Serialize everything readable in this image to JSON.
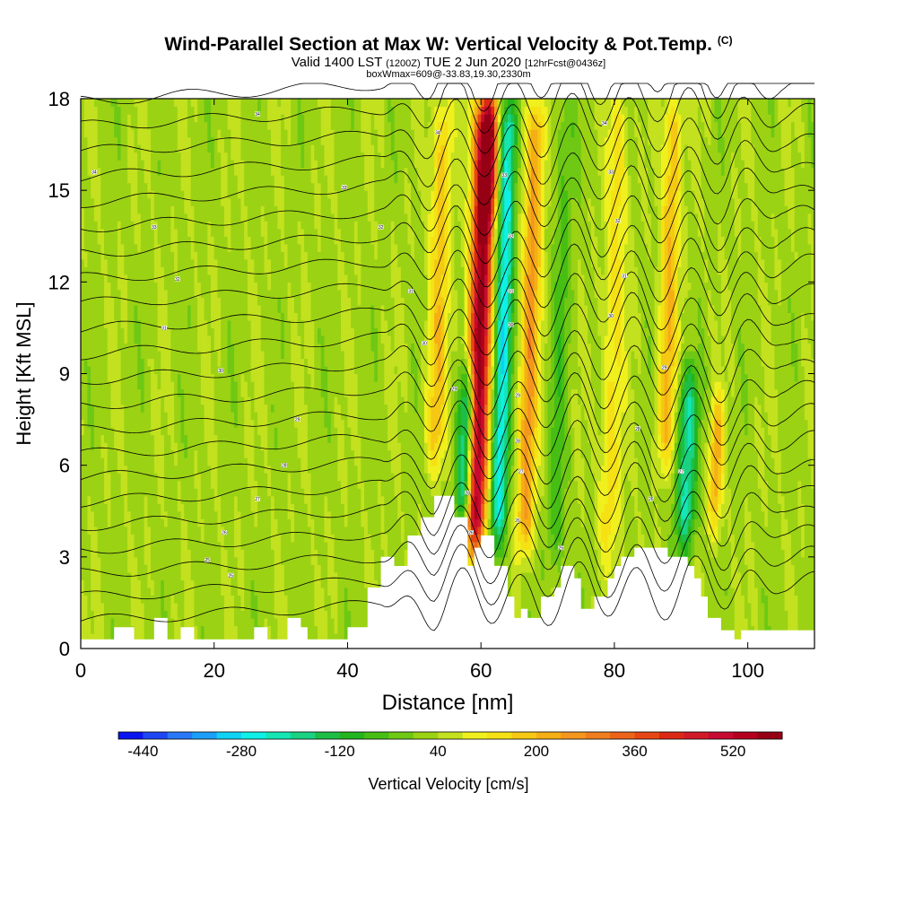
{
  "header": {
    "title": "Wind-Parallel Section at Max W: Vertical Velocity & Pot.Temp.",
    "title_mark": "(C)",
    "valid_prefix": "Valid 1400 LST",
    "valid_zulu": "(1200Z)",
    "valid_date": "TUE 2 Jun 2020",
    "forecast": "[12hrFcst@0436z]",
    "boxw": "boxWmax=609@-33.83,19.30,2330m"
  },
  "colors": {
    "terrain": "#ffffff",
    "contour": "#000000",
    "plot_border": "#000000"
  },
  "chart_data": {
    "type": "heatmap",
    "xlabel": "Distance [nm]",
    "ylabel": "Height [Kft MSL]",
    "xlim": [
      0,
      110
    ],
    "ylim": [
      0,
      18
    ],
    "xticks": [
      0,
      20,
      40,
      60,
      80,
      100
    ],
    "yticks": [
      0,
      3,
      6,
      9,
      12,
      15,
      18
    ],
    "grid": false,
    "colorbar": {
      "label": "Vertical Velocity [cm/s]",
      "min": -480,
      "max": 600,
      "step": 40,
      "tick_values": [
        -440,
        -280,
        -120,
        40,
        200,
        360,
        520
      ],
      "colors": [
        "#0a14f0",
        "#1e46f5",
        "#2878f8",
        "#1aa0fa",
        "#0fd2f5",
        "#0ff0e6",
        "#14e6b4",
        "#19d282",
        "#1ebe46",
        "#23b41e",
        "#46be14",
        "#6ec814",
        "#9bd214",
        "#c3e11e",
        "#f0f01e",
        "#f5e114",
        "#f5c814",
        "#f5af14",
        "#f5961e",
        "#f07d1e",
        "#eb6419",
        "#e64614",
        "#dc2814",
        "#d21928",
        "#c80a32",
        "#b4001e",
        "#960014"
      ]
    },
    "terrain_kft": [
      [
        0,
        0.3
      ],
      [
        5,
        0.3
      ],
      [
        5,
        0.7
      ],
      [
        8,
        0.7
      ],
      [
        8,
        0.3
      ],
      [
        11,
        0.3
      ],
      [
        11,
        1.0
      ],
      [
        13,
        1.0
      ],
      [
        13,
        0.3
      ],
      [
        15,
        0.3
      ],
      [
        15,
        0.7
      ],
      [
        17,
        0.7
      ],
      [
        17,
        0.3
      ],
      [
        26,
        0.3
      ],
      [
        26,
        0.7
      ],
      [
        28,
        0.7
      ],
      [
        28,
        0.3
      ],
      [
        31,
        0.3
      ],
      [
        31,
        1.0
      ],
      [
        33,
        1.0
      ],
      [
        33,
        0.7
      ],
      [
        34,
        0.7
      ],
      [
        34,
        0.3
      ],
      [
        40,
        0.3
      ],
      [
        40,
        0.7
      ],
      [
        43,
        0.7
      ],
      [
        43,
        2.0
      ],
      [
        45,
        2.0
      ],
      [
        45,
        3.0
      ],
      [
        47,
        3.0
      ],
      [
        47,
        2.7
      ],
      [
        49,
        2.7
      ],
      [
        49,
        3.7
      ],
      [
        51,
        3.7
      ],
      [
        51,
        4.3
      ],
      [
        53,
        4.3
      ],
      [
        53,
        5.0
      ],
      [
        56,
        5.0
      ],
      [
        56,
        4.3
      ],
      [
        58,
        4.3
      ],
      [
        58,
        2.7
      ],
      [
        59,
        2.7
      ],
      [
        59,
        3.3
      ],
      [
        60,
        3.3
      ],
      [
        60,
        3.7
      ],
      [
        62,
        3.7
      ],
      [
        62,
        2.7
      ],
      [
        64,
        2.7
      ],
      [
        64,
        1.7
      ],
      [
        65,
        1.7
      ],
      [
        65,
        1.0
      ],
      [
        66,
        1.0
      ],
      [
        66,
        1.3
      ],
      [
        67,
        1.3
      ],
      [
        67,
        1.0
      ],
      [
        69,
        1.0
      ],
      [
        69,
        1.7
      ],
      [
        71,
        1.7
      ],
      [
        71,
        2.0
      ],
      [
        72,
        2.0
      ],
      [
        72,
        2.7
      ],
      [
        74,
        2.7
      ],
      [
        74,
        2.3
      ],
      [
        75,
        2.3
      ],
      [
        75,
        1.3
      ],
      [
        77,
        1.3
      ],
      [
        77,
        1.7
      ],
      [
        79,
        1.7
      ],
      [
        79,
        2.3
      ],
      [
        80,
        2.3
      ],
      [
        80,
        2.7
      ],
      [
        81,
        2.7
      ],
      [
        81,
        3.0
      ],
      [
        83,
        3.0
      ],
      [
        83,
        3.3
      ],
      [
        88,
        3.3
      ],
      [
        88,
        3.0
      ],
      [
        91,
        3.0
      ],
      [
        91,
        2.7
      ],
      [
        92,
        2.7
      ],
      [
        92,
        2.3
      ],
      [
        93,
        2.3
      ],
      [
        93,
        1.7
      ],
      [
        94,
        1.7
      ],
      [
        94,
        1.0
      ],
      [
        96,
        1.0
      ],
      [
        96,
        0.6
      ],
      [
        98,
        0.6
      ],
      [
        98,
        0.3
      ],
      [
        99,
        0.3
      ],
      [
        99,
        0.6
      ],
      [
        110,
        0.6
      ]
    ],
    "updraft_cores": [
      {
        "x": 59.0,
        "ymin": 3.3,
        "ymax": 18,
        "w_cms": 560,
        "halfwidth_nm": 1.6
      },
      {
        "x": 66.5,
        "ymin": 3.3,
        "ymax": 18,
        "w_cms": 220,
        "halfwidth_nm": 1.4
      },
      {
        "x": 61.0,
        "ymin": 14,
        "ymax": 18,
        "w_cms": 240,
        "halfwidth_nm": 1.2
      },
      {
        "x": 53.0,
        "ymin": 6,
        "ymax": 18,
        "w_cms": 150,
        "halfwidth_nm": 1.5
      },
      {
        "x": 87.5,
        "ymin": 6,
        "ymax": 18,
        "w_cms": 170,
        "halfwidth_nm": 1.4
      },
      {
        "x": 95.0,
        "ymin": 4,
        "ymax": 8,
        "w_cms": 190,
        "halfwidth_nm": 1.0
      },
      {
        "x": 79.0,
        "ymin": 3,
        "ymax": 18,
        "w_cms": 110,
        "halfwidth_nm": 1.6
      }
    ],
    "downdraft_cores": [
      {
        "x": 57.5,
        "ymin": 4.0,
        "ymax": 9,
        "w_cms": -330,
        "halfwidth_nm": 1.3
      },
      {
        "x": 62.5,
        "ymin": 3.5,
        "ymax": 18,
        "w_cms": -300,
        "halfwidth_nm": 1.3
      },
      {
        "x": 90.5,
        "ymin": 3.3,
        "ymax": 9,
        "w_cms": -240,
        "halfwidth_nm": 1.5
      },
      {
        "x": 71.0,
        "ymin": 2.5,
        "ymax": 18,
        "w_cms": -80,
        "halfwidth_nm": 1.5
      }
    ],
    "theta_contour_labels": [
      {
        "x": 2,
        "y": 15.6,
        "text": "34"
      },
      {
        "x": 26.5,
        "y": 17.5,
        "text": "34"
      },
      {
        "x": 53.5,
        "y": 16.9,
        "text": "34"
      },
      {
        "x": 78.5,
        "y": 17.2,
        "text": "34"
      },
      {
        "x": 11,
        "y": 13.8,
        "text": "33"
      },
      {
        "x": 39.5,
        "y": 15.1,
        "text": "33"
      },
      {
        "x": 63.5,
        "y": 15.5,
        "text": "33"
      },
      {
        "x": 79.5,
        "y": 15.6,
        "text": "33"
      },
      {
        "x": 14.5,
        "y": 12.1,
        "text": "32"
      },
      {
        "x": 45,
        "y": 13.8,
        "text": "32"
      },
      {
        "x": 64.5,
        "y": 13.5,
        "text": "32"
      },
      {
        "x": 80.5,
        "y": 14.0,
        "text": "32"
      },
      {
        "x": 12.5,
        "y": 10.5,
        "text": "31"
      },
      {
        "x": 49.5,
        "y": 11.7,
        "text": "31"
      },
      {
        "x": 64.5,
        "y": 11.7,
        "text": "31"
      },
      {
        "x": 81.5,
        "y": 12.2,
        "text": "31"
      },
      {
        "x": 21,
        "y": 9.1,
        "text": "30"
      },
      {
        "x": 51.5,
        "y": 10.0,
        "text": "30"
      },
      {
        "x": 64.5,
        "y": 10.6,
        "text": "30"
      },
      {
        "x": 79.5,
        "y": 10.9,
        "text": "30"
      },
      {
        "x": 32.5,
        "y": 7.5,
        "text": "29"
      },
      {
        "x": 56,
        "y": 8.5,
        "text": "29"
      },
      {
        "x": 65.5,
        "y": 8.3,
        "text": "29"
      },
      {
        "x": 87.5,
        "y": 9.2,
        "text": "29"
      },
      {
        "x": 30.5,
        "y": 6.0,
        "text": "28"
      },
      {
        "x": 58,
        "y": 5.1,
        "text": "28"
      },
      {
        "x": 65.5,
        "y": 6.8,
        "text": "28"
      },
      {
        "x": 83.5,
        "y": 7.2,
        "text": "28"
      },
      {
        "x": 26.5,
        "y": 4.9,
        "text": "27"
      },
      {
        "x": 66,
        "y": 5.8,
        "text": "27"
      },
      {
        "x": 90,
        "y": 5.8,
        "text": "27"
      },
      {
        "x": 21.5,
        "y": 3.8,
        "text": "26"
      },
      {
        "x": 58.5,
        "y": 3.8,
        "text": "26"
      },
      {
        "x": 65.5,
        "y": 4.2,
        "text": "26"
      },
      {
        "x": 85.5,
        "y": 4.9,
        "text": "26"
      },
      {
        "x": 19,
        "y": 2.9,
        "text": "25"
      },
      {
        "x": 22.5,
        "y": 2.4,
        "text": "25"
      },
      {
        "x": 72,
        "y": 3.3,
        "text": "25"
      }
    ]
  }
}
